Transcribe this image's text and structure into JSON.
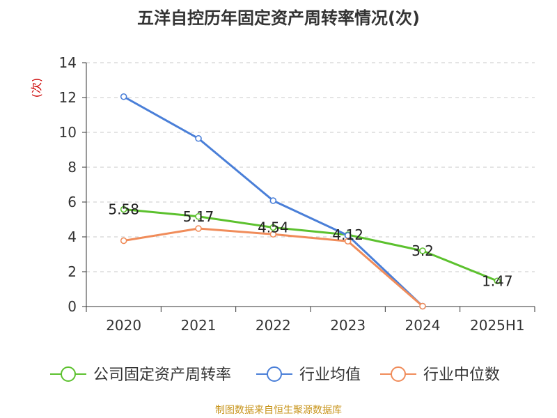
{
  "chart_data": {
    "type": "line",
    "title": "五洋自控历年固定资产周转率情况(次)",
    "ylabel": "(次)",
    "xlabel": "",
    "categories": [
      "2020",
      "2021",
      "2022",
      "2023",
      "2024",
      "2025H1"
    ],
    "ylim": [
      0,
      14
    ],
    "yticks": [
      0,
      2,
      4,
      6,
      8,
      10,
      12,
      14
    ],
    "grid": true,
    "legend_position": "bottom",
    "series": [
      {
        "name": "公司固定资产周转率",
        "color": "#5cc12e",
        "values": [
          5.58,
          5.17,
          4.54,
          4.12,
          3.2,
          1.47
        ],
        "labels": [
          "5.58",
          "5.17",
          "4.54",
          "4.12",
          "3.2",
          "1.47"
        ]
      },
      {
        "name": "行业均值",
        "color": "#4a7fd8",
        "values": [
          12.05,
          9.65,
          6.08,
          4.08,
          0.02,
          null
        ]
      },
      {
        "name": "行业中位数",
        "color": "#f08c5a",
        "values": [
          3.78,
          4.48,
          4.15,
          3.75,
          0.02,
          null
        ]
      }
    ]
  },
  "source": "制图数据来自恒生聚源数据库"
}
